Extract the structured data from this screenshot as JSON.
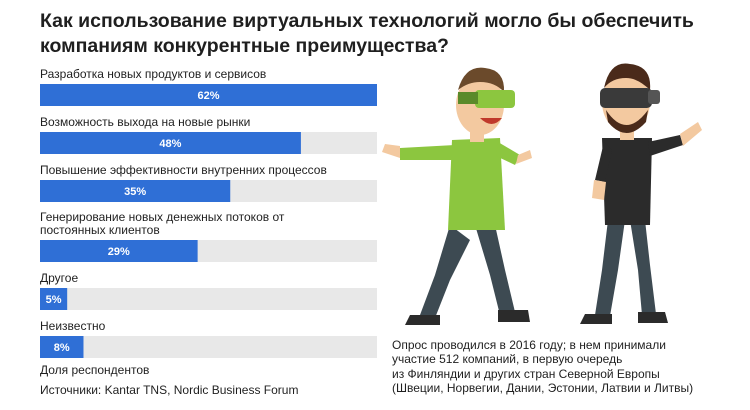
{
  "title_lines": [
    "Как использование виртуальных технологий могло бы обеспечить",
    "компаниям конкурентные преимущества?"
  ],
  "chart_data": {
    "type": "bar",
    "orientation": "horizontal",
    "categories": [
      [
        "Разработка новых продуктов и сервисов"
      ],
      [
        "Возможность выхода на новые рынки"
      ],
      [
        "Повышение эффективности внутренних процессов"
      ],
      [
        "Генерирование новых денежных потоков от",
        "постоянных клиентов"
      ],
      [
        "Другое"
      ],
      [
        "Неизвестно"
      ]
    ],
    "values": [
      62,
      48,
      35,
      29,
      5,
      8
    ],
    "value_labels": [
      "62%",
      "48%",
      "35%",
      "29%",
      "5%",
      "8%"
    ],
    "xlim": [
      0,
      62
    ],
    "bar_color": "#2f6fd6",
    "track_color": "#e8e8e8",
    "label_color": "#ffffff"
  },
  "footer": {
    "unit_note": "Доля респондентов",
    "sources": "Источники: Kantar TNS, Nordic Business Forum"
  },
  "note_lines": [
    "Опрос проводился в 2016 году; в нем принимали",
    "участие 512 компаний, в первую очередь",
    "из Финляндии и других стран Северной Европы",
    "(Швеции, Норвегии, Дании, Эстонии, Латвии и Литвы)"
  ],
  "illustration": {
    "left_person_shirt": "#8cc63f",
    "left_person_headset": "#8cc63f",
    "right_person_shirt": "#2b2b2b",
    "right_person_headset": "#3a3a3a",
    "pants": "#3d4a52",
    "skin": "#f3c9a0",
    "hair_left": "#6b4a2b",
    "hair_right": "#4a2a1a"
  }
}
